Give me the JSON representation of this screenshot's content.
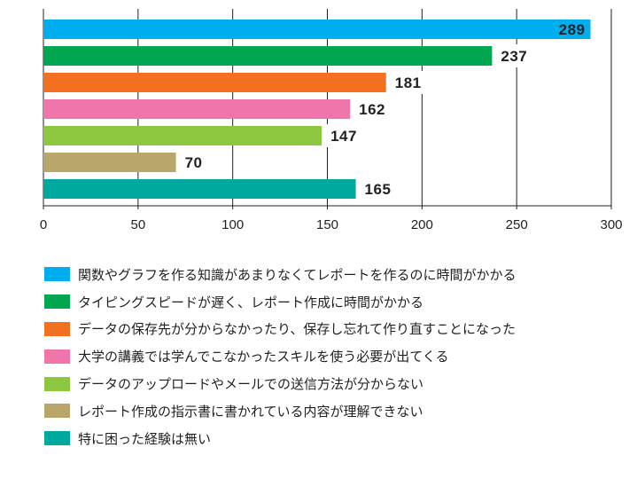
{
  "chart_data": {
    "type": "bar",
    "orientation": "horizontal",
    "categories": [
      "関数やグラフを作る知識があまりなくてレポートを作るのに時間がかかる",
      "タイピングスピードが遅く、レポート作成に時間がかかる",
      "データの保存先が分からなかったり、保存し忘れて作り直すことになった",
      "大学の講義では学んでこなかったスキルを使う必要が出てくる",
      "データのアップロードやメールでの送信方法が分からない",
      "レポート作成の指示書に書かれている内容が理解できない",
      "特に困った経験は無い"
    ],
    "values": [
      289,
      237,
      181,
      162,
      147,
      70,
      165
    ],
    "colors": [
      "#00aeef",
      "#00a650",
      "#f37021",
      "#f075aa",
      "#8dc63f",
      "#b9a66a",
      "#00a99d"
    ],
    "xlim": [
      0,
      300
    ],
    "xticks": [
      0,
      50,
      100,
      150,
      200,
      250,
      300
    ],
    "grid": true,
    "legend": "bottom",
    "title": "",
    "xlabel": "",
    "ylabel": ""
  }
}
